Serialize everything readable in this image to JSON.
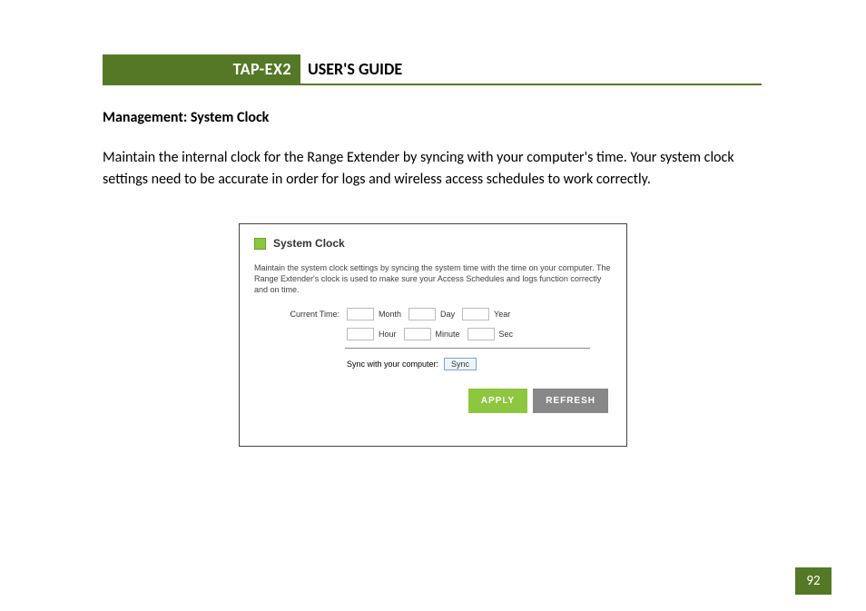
{
  "header": {
    "product": "TAP-EX2",
    "title": "USER'S GUIDE"
  },
  "section_title": "Management: System Clock",
  "body_text": "Maintain the internal clock for the Range Extender by syncing with your computer's time. Your system clock settings need to be accurate in order for logs and wireless access schedules to work correctly.",
  "panel": {
    "title": "System Clock",
    "description": "Maintain the system clock settings by syncing the system time with the time on your computer. The Range Extender's clock is used to make sure your Access Schedules and logs function correctly and on time.",
    "current_time_label": "Current Time:",
    "fields": {
      "month": {
        "label": "Month",
        "value": ""
      },
      "day": {
        "label": "Day",
        "value": ""
      },
      "year": {
        "label": "Year",
        "value": ""
      },
      "hour": {
        "label": "Hour",
        "value": ""
      },
      "minute": {
        "label": "Minute",
        "value": ""
      },
      "sec": {
        "label": "Sec",
        "value": ""
      }
    },
    "sync_label": "Sync with your computer:",
    "sync_button": "Sync",
    "apply_button": "APPLY",
    "refresh_button": "REFRESH"
  },
  "page_number": "92",
  "colors": {
    "brand_green": "#547826",
    "light_green": "#8dc63f",
    "gray_button": "#888888"
  }
}
